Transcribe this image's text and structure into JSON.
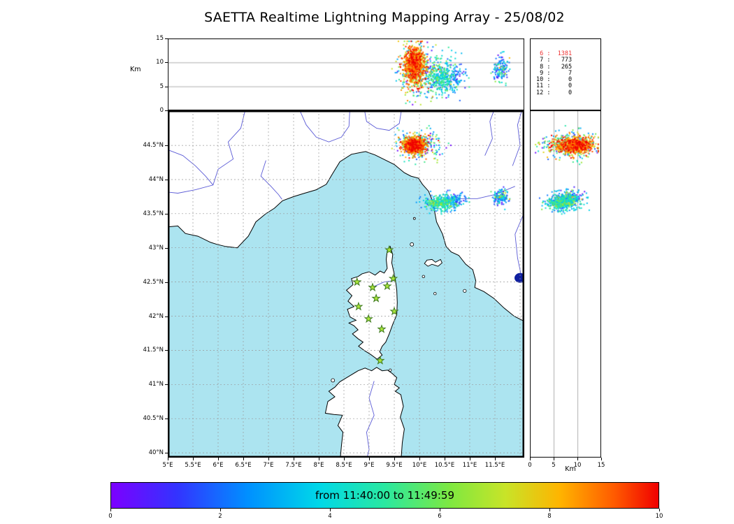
{
  "title": "SAETTA Realtime Lightning Mapping Array - 25/08/02",
  "colors": {
    "sea": "#ace4f0",
    "land": "#ffffff",
    "coast": "#000000",
    "river": "#5b5bd6",
    "lake": "#0f1fa0",
    "grid": "#999999",
    "station_fill": "#aae43c",
    "station_edge": "#3e7a1e",
    "count_highlight": "#ee3333"
  },
  "top_panel": {
    "axis_label": "Km",
    "alt_range": [
      0,
      15
    ],
    "grid_km": [
      5,
      10
    ],
    "alt_ticks": [
      {
        "label": "15",
        "km": 15
      },
      {
        "label": "10",
        "km": 10
      },
      {
        "label": "5",
        "km": 5
      },
      {
        "label": "0",
        "km": 0
      }
    ]
  },
  "stats_panel": {
    "sep": " : ",
    "rows": [
      {
        "label": "6",
        "value": "1381",
        "highlight": true
      },
      {
        "label": "7",
        "value": "773",
        "highlight": false
      },
      {
        "label": "8",
        "value": "265",
        "highlight": false
      },
      {
        "label": "9",
        "value": "7",
        "highlight": false
      },
      {
        "label": "10",
        "value": "0",
        "highlight": false
      },
      {
        "label": "11",
        "value": "0",
        "highlight": false
      },
      {
        "label": "12",
        "value": "0",
        "highlight": false
      }
    ]
  },
  "map_panel": {
    "lon_range": [
      5,
      12.08
    ],
    "lat_range": [
      39.93,
      45.01
    ],
    "lon_ticks": [
      {
        "label": "5°E",
        "lon": 5
      },
      {
        "label": "5.5°E",
        "lon": 5.5
      },
      {
        "label": "6°E",
        "lon": 6
      },
      {
        "label": "6.5°E",
        "lon": 6.5
      },
      {
        "label": "7°E",
        "lon": 7
      },
      {
        "label": "7.5°E",
        "lon": 7.5
      },
      {
        "label": "8°E",
        "lon": 8
      },
      {
        "label": "8.5°E",
        "lon": 8.5
      },
      {
        "label": "9°E",
        "lon": 9
      },
      {
        "label": "9.5°E",
        "lon": 9.5
      },
      {
        "label": "10°E",
        "lon": 10
      },
      {
        "label": "10.5°E",
        "lon": 10.5
      },
      {
        "label": "11°E",
        "lon": 11
      },
      {
        "label": "11.5°E",
        "lon": 11.5
      }
    ],
    "lat_ticks": [
      {
        "label": "44.5°N",
        "lat": 44.5
      },
      {
        "label": "44°N",
        "lat": 44
      },
      {
        "label": "43.5°N",
        "lat": 43.5
      },
      {
        "label": "43°N",
        "lat": 43
      },
      {
        "label": "42.5°N",
        "lat": 42.5
      },
      {
        "label": "42°N",
        "lat": 42
      },
      {
        "label": "41.5°N",
        "lat": 41.5
      },
      {
        "label": "41°N",
        "lat": 41
      },
      {
        "label": "40.5°N",
        "lat": 40.5
      },
      {
        "label": "40°N",
        "lat": 40
      }
    ]
  },
  "right_panel": {
    "axis_label": "Km",
    "grid_km": [
      5,
      10
    ],
    "km_ticks": [
      {
        "label": "0",
        "km": 0
      },
      {
        "label": "5",
        "km": 5
      },
      {
        "label": "10",
        "km": 10
      },
      {
        "label": "15",
        "km": 15
      }
    ]
  },
  "colorbar": {
    "label": "from 11:40:00 to 11:49:59",
    "range": [
      0,
      10
    ],
    "ticks": [
      {
        "label": "0",
        "value": 0
      },
      {
        "label": "2",
        "value": 2
      },
      {
        "label": "4",
        "value": 4
      },
      {
        "label": "6",
        "value": 6
      },
      {
        "label": "8",
        "value": 8
      },
      {
        "label": "10",
        "value": 10
      }
    ],
    "stops": [
      [
        0,
        "#7c00ff"
      ],
      [
        0.12,
        "#3333ff"
      ],
      [
        0.25,
        "#0090ff"
      ],
      [
        0.38,
        "#00d8e8"
      ],
      [
        0.5,
        "#2ae8a0"
      ],
      [
        0.62,
        "#7fe840"
      ],
      [
        0.72,
        "#c8e428"
      ],
      [
        0.82,
        "#ffb400"
      ],
      [
        0.92,
        "#ff5a00"
      ],
      [
        1,
        "#f00000"
      ]
    ]
  },
  "chart_data": {
    "type": "scatter",
    "title": "SAETTA Realtime Lightning Mapping Array - 25/08/02",
    "time_window": "from 11:40:00 to 11:49:59",
    "panels": [
      {
        "id": "longitude-altitude",
        "xlim": [
          5,
          12.08
        ],
        "ylim": [
          0,
          15
        ],
        "ylabel": "Km",
        "grid": "horizontal 5,10 km"
      },
      {
        "id": "plan-view-map",
        "xlim": [
          5,
          12.08
        ],
        "ylim": [
          39.93,
          45.01
        ],
        "grid": "dashed 0.5 deg"
      },
      {
        "id": "altitude-latitude",
        "xlim": [
          0,
          15
        ],
        "ylim": [
          39.93,
          45.01
        ],
        "xlabel": "Km",
        "grid": "vertical 5,10 km"
      }
    ],
    "counts_table": [
      [
        6,
        1381
      ],
      [
        7,
        773
      ],
      [
        8,
        265
      ],
      [
        9,
        7
      ],
      [
        10,
        0
      ],
      [
        11,
        0
      ],
      [
        12,
        0
      ]
    ],
    "clusters": [
      {
        "name": "storm-cell-main",
        "count": 850,
        "lon": 9.9,
        "lon_sd": 0.1,
        "lat": 44.5,
        "lat_sd": 0.055,
        "alt": 9.5,
        "alt_sd": 2.0,
        "t": 0.85,
        "t_sd": 0.1
      },
      {
        "name": "storm-cell-main-early",
        "count": 300,
        "lon": 9.99,
        "lon_sd": 0.21,
        "lat": 44.49,
        "lat_sd": 0.1,
        "alt": 8.5,
        "alt_sd": 2.8,
        "t": 0.45,
        "t_sd": 0.28
      },
      {
        "name": "storm-cell-south",
        "count": 380,
        "lon": 10.42,
        "lon_sd": 0.16,
        "lat": 43.66,
        "lat_sd": 0.055,
        "alt": 6.8,
        "alt_sd": 1.7,
        "t": 0.4,
        "t_sd": 0.13
      },
      {
        "name": "storm-cell-south-east",
        "count": 90,
        "lon": 10.72,
        "lon_sd": 0.1,
        "lat": 43.7,
        "lat_sd": 0.05,
        "alt": 6.5,
        "alt_sd": 1.5,
        "t": 0.22,
        "t_sd": 0.12
      },
      {
        "name": "storm-cell-east",
        "count": 140,
        "lon": 11.62,
        "lon_sd": 0.08,
        "lat": 43.74,
        "lat_sd": 0.055,
        "alt": 8.8,
        "alt_sd": 1.5,
        "t": 0.25,
        "t_sd": 0.2
      }
    ],
    "stations_lonlat": [
      [
        9.4,
        42.97
      ],
      [
        8.76,
        42.5
      ],
      [
        9.07,
        42.42
      ],
      [
        9.36,
        42.44
      ],
      [
        9.48,
        42.55
      ],
      [
        9.14,
        42.26
      ],
      [
        8.79,
        42.14
      ],
      [
        9.5,
        42.07
      ],
      [
        8.99,
        41.96
      ],
      [
        9.25,
        41.81
      ],
      [
        9.22,
        41.35
      ]
    ]
  }
}
